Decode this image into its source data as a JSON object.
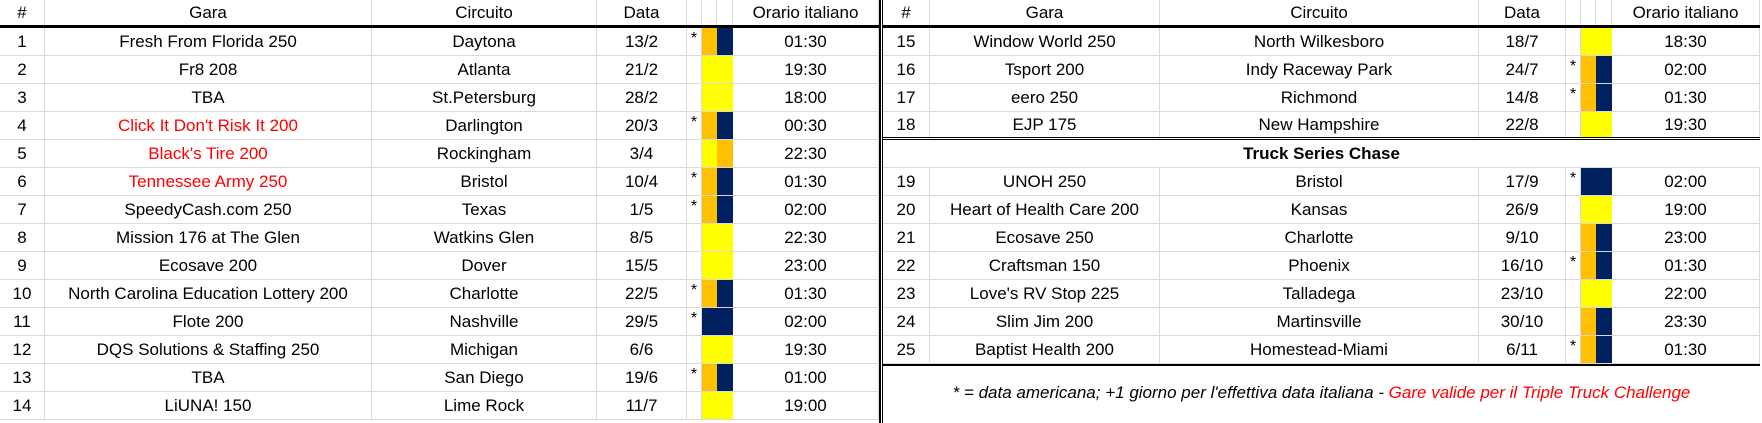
{
  "colors": {
    "yellow": "#FFFF00",
    "orange": "#FFC000",
    "navy": "#002060",
    "red": "#FF0000"
  },
  "headers": {
    "num": "#",
    "race": "Gara",
    "circuit": "Circuito",
    "date": "Data",
    "time": "Orario italiano"
  },
  "left_rows": [
    {
      "num": "1",
      "race": "Fresh From Florida 250",
      "circuit": "Daytona",
      "date": "13/2",
      "star": "*",
      "cells": [
        "orange",
        "navy"
      ],
      "time": "01:30",
      "red": false
    },
    {
      "num": "2",
      "race": "Fr8 208",
      "circuit": "Atlanta",
      "date": "21/2",
      "star": "",
      "cells": [
        "yellow",
        "yellow"
      ],
      "time": "19:30",
      "red": false
    },
    {
      "num": "3",
      "race": "TBA",
      "circuit": "St.Petersburg",
      "date": "28/2",
      "star": "",
      "cells": [
        "yellow",
        "yellow"
      ],
      "time": "18:00",
      "red": false
    },
    {
      "num": "4",
      "race": "Click It Don't Risk It 200",
      "circuit": "Darlington",
      "date": "20/3",
      "star": "*",
      "cells": [
        "orange",
        "navy"
      ],
      "time": "00:30",
      "red": true
    },
    {
      "num": "5",
      "race": "Black's Tire 200",
      "circuit": "Rockingham",
      "date": "3/4",
      "star": "",
      "cells": [
        "yellow",
        "orange"
      ],
      "time": "22:30",
      "red": true
    },
    {
      "num": "6",
      "race": "Tennessee Army 250",
      "circuit": "Bristol",
      "date": "10/4",
      "star": "*",
      "cells": [
        "orange",
        "navy"
      ],
      "time": "01:30",
      "red": true
    },
    {
      "num": "7",
      "race": "SpeedyCash.com 250",
      "circuit": "Texas",
      "date": "1/5",
      "star": "*",
      "cells": [
        "orange",
        "navy"
      ],
      "time": "02:00",
      "red": false
    },
    {
      "num": "8",
      "race": "Mission 176 at The Glen",
      "circuit": "Watkins Glen",
      "date": "8/5",
      "star": "",
      "cells": [
        "yellow",
        "yellow"
      ],
      "time": "22:30",
      "red": false
    },
    {
      "num": "9",
      "race": "Ecosave 200",
      "circuit": "Dover",
      "date": "15/5",
      "star": "",
      "cells": [
        "yellow",
        "yellow"
      ],
      "time": "23:00",
      "red": false
    },
    {
      "num": "10",
      "race": "North Carolina Education Lottery 200",
      "circuit": "Charlotte",
      "date": "22/5",
      "star": "*",
      "cells": [
        "orange",
        "navy"
      ],
      "time": "01:30",
      "red": false
    },
    {
      "num": "11",
      "race": "Flote 200",
      "circuit": "Nashville",
      "date": "29/5",
      "star": "*",
      "cells": [
        "navy",
        "navy"
      ],
      "time": "02:00",
      "red": false
    },
    {
      "num": "12",
      "race": "DQS Solutions & Staffing 250",
      "circuit": "Michigan",
      "date": "6/6",
      "star": "",
      "cells": [
        "yellow",
        "yellow"
      ],
      "time": "19:30",
      "red": false
    },
    {
      "num": "13",
      "race": "TBA",
      "circuit": "San Diego",
      "date": "19/6",
      "star": "*",
      "cells": [
        "orange",
        "navy"
      ],
      "time": "01:00",
      "red": false
    },
    {
      "num": "14",
      "race": "LiUNA! 150",
      "circuit": "Lime Rock",
      "date": "11/7",
      "star": "",
      "cells": [
        "yellow",
        "yellow"
      ],
      "time": "19:00",
      "red": false
    }
  ],
  "right_rows": [
    {
      "num": "15",
      "race": "Window World 250",
      "circuit": "North Wilkesboro",
      "date": "18/7",
      "star": "",
      "cells": [
        "yellow",
        "yellow"
      ],
      "time": "18:30"
    },
    {
      "num": "16",
      "race": "Tsport 200",
      "circuit": "Indy Raceway Park",
      "date": "24/7",
      "star": "*",
      "cells": [
        "orange",
        "navy"
      ],
      "time": "02:00"
    },
    {
      "num": "17",
      "race": "eero 250",
      "circuit": "Richmond",
      "date": "14/8",
      "star": "*",
      "cells": [
        "orange",
        "navy"
      ],
      "time": "01:30"
    },
    {
      "num": "18",
      "race": "EJP 175",
      "circuit": "New Hampshire",
      "date": "22/8",
      "star": "",
      "cells": [
        "yellow",
        "yellow"
      ],
      "time": "19:30"
    }
  ],
  "chase_title": "Truck Series Chase",
  "chase_rows": [
    {
      "num": "19",
      "race": "UNOH 250",
      "circuit": "Bristol",
      "date": "17/9",
      "star": "*",
      "cells": [
        "navy",
        "navy"
      ],
      "time": "02:00"
    },
    {
      "num": "20",
      "race": "Heart of Health Care 200",
      "circuit": "Kansas",
      "date": "26/9",
      "star": "",
      "cells": [
        "yellow",
        "yellow"
      ],
      "time": "19:00"
    },
    {
      "num": "21",
      "race": "Ecosave 250",
      "circuit": "Charlotte",
      "date": "9/10",
      "star": "",
      "cells": [
        "orange",
        "navy"
      ],
      "time": "23:00"
    },
    {
      "num": "22",
      "race": "Craftsman 150",
      "circuit": "Phoenix",
      "date": "16/10",
      "star": "*",
      "cells": [
        "orange",
        "navy"
      ],
      "time": "01:30"
    },
    {
      "num": "23",
      "race": "Love's RV Stop 225",
      "circuit": "Talladega",
      "date": "23/10",
      "star": "",
      "cells": [
        "yellow",
        "yellow"
      ],
      "time": "22:00"
    },
    {
      "num": "24",
      "race": "Slim Jim 200",
      "circuit": "Martinsville",
      "date": "30/10",
      "star": "",
      "cells": [
        "orange",
        "navy"
      ],
      "time": "23:30"
    },
    {
      "num": "25",
      "race": "Baptist Health 200",
      "circuit": "Homestead-Miami",
      "date": "6/11",
      "star": "*",
      "cells": [
        "orange",
        "navy"
      ],
      "time": "01:30"
    }
  ],
  "footnote": {
    "text": "* = data americana; +1 giorno per l'effettiva data italiana - ",
    "red_text": "Gare valide per il Triple Truck Challenge"
  }
}
